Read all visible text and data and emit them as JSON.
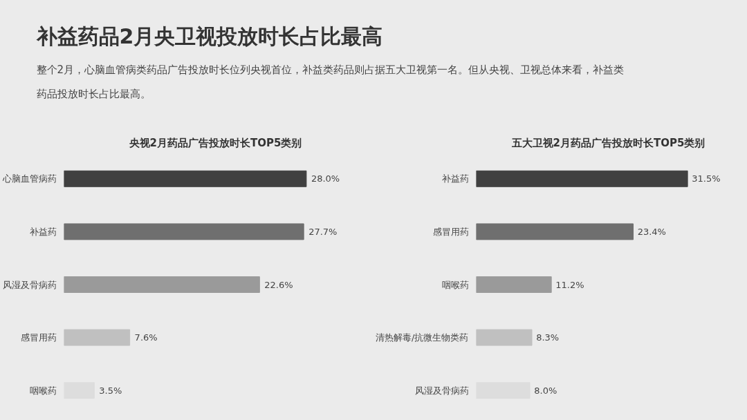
{
  "chart_data": [
    {
      "type": "bar",
      "orientation": "horizontal",
      "title": "央视2月药品广告投放时长TOP5类别",
      "annotations": [
        "补益药品2月央卫视投放时长占比最高",
        "整个2月，心脑血管病类药品广告投放时长位列央视首位，补益类药品则占据五大卫视第一名。但从央视、卫视总体来看，补益类药品投放时长占比最高。"
      ],
      "categories": [
        "心脑血管病药",
        "补益药",
        "风湿及骨病药",
        "感冒用药",
        "咽喉药"
      ],
      "values": [
        28.0,
        27.7,
        22.6,
        7.6,
        3.5
      ],
      "colors": [
        "#404040",
        "#6f6f6f",
        "#9a9a9a",
        "#c0c0c0",
        "#dddddd"
      ],
      "value_labels": [
        "28.0%",
        "27.7%",
        "22.6%",
        "7.6%",
        "3.5%"
      ]
    },
    {
      "type": "bar",
      "orientation": "horizontal",
      "title": "五大卫视2月药品广告投放时长TOP5类别",
      "categories": [
        "补益药",
        "感冒用药",
        "咽喉药",
        "清热解毒/抗微生物类药",
        "风湿及骨病药"
      ],
      "values": [
        31.5,
        23.4,
        11.2,
        8.3,
        8.0
      ],
      "colors": [
        "#404040",
        "#6f6f6f",
        "#9a9a9a",
        "#c0c0c0",
        "#dddddd"
      ],
      "value_labels": [
        "31.5%",
        "23.4%",
        "11.2%",
        "8.3%",
        "8.0%"
      ]
    }
  ]
}
